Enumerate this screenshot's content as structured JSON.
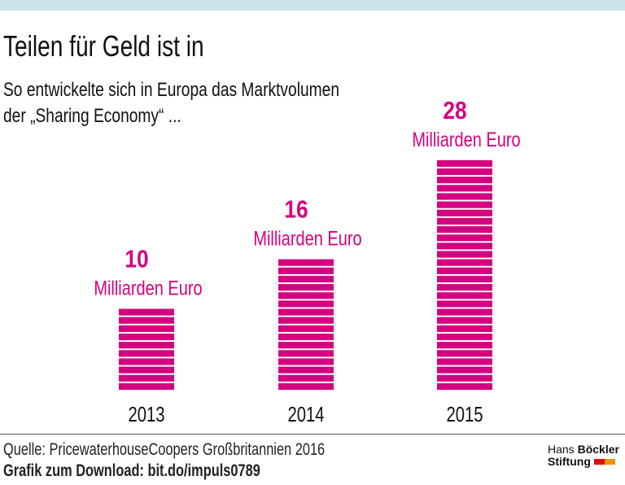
{
  "header": {
    "title": "Teilen für Geld ist in",
    "subtitle_line1": "So entwickelte sich in Europa das Marktvolumen",
    "subtitle_line2": "der „Sharing Economy“ ..."
  },
  "colors": {
    "bar": "#d5007f",
    "label": "#d5007f",
    "top_band": "#cce3ec",
    "logo_red": "#e30613",
    "logo_orange": "#f39200"
  },
  "chart_data": {
    "type": "bar",
    "title": "Teilen für Geld ist in",
    "subtitle": "So entwickelte sich in Europa das Marktvolumen der „Sharing Economy“ ...",
    "categories": [
      "2013",
      "2014",
      "2015"
    ],
    "values": [
      10,
      16,
      28
    ],
    "value_unit_label": "Milliarden Euro",
    "xlabel": "",
    "ylabel": "",
    "ylim": [
      0,
      28
    ],
    "grid": false,
    "legend": "none",
    "bar_style": "stacked stripes, one stripe per 1 Mrd. Euro"
  },
  "footer": {
    "source": "Quelle: PricewaterhouseCoopers Großbritannien 2016",
    "download": "Grafik zum Download: bit.do/impuls0789",
    "logo_line1_regular": "Hans ",
    "logo_line1_bold": "Böckler",
    "logo_line2": "Stiftung"
  }
}
